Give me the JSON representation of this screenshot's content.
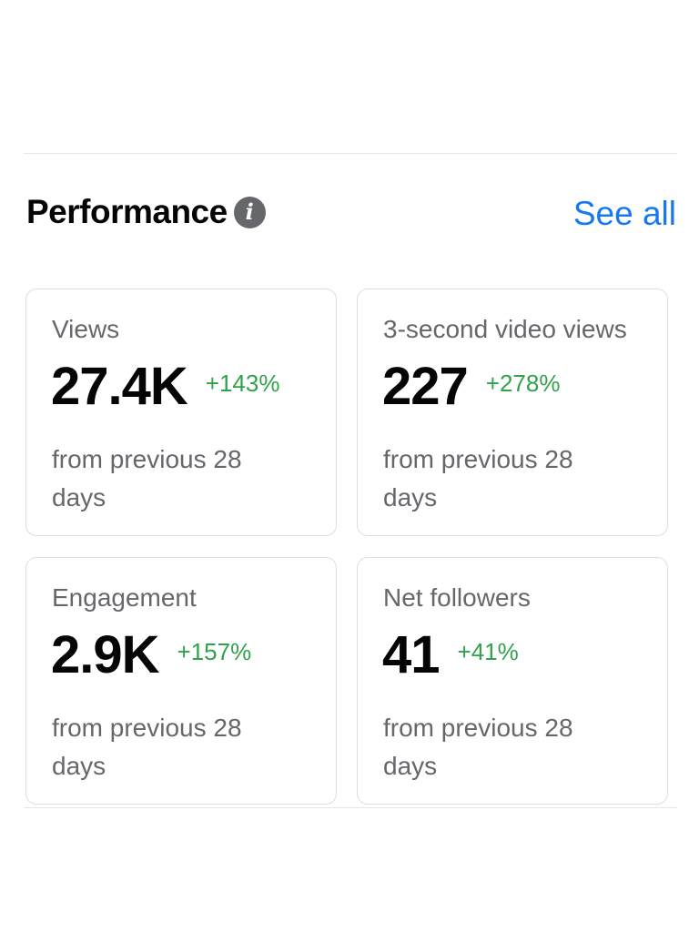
{
  "performance": {
    "title": "Performance",
    "info_icon": "info-icon",
    "see_all_label": "See all",
    "colors": {
      "positive_change": "#31a24c",
      "link": "#1877f2",
      "muted_text": "#65676b"
    },
    "cards": [
      {
        "label": "Views",
        "value": "27.4K",
        "change": "+143%",
        "note": "from previous 28 days"
      },
      {
        "label": "3-second video views",
        "value": "227",
        "change": "+278%",
        "note": "from previous 28 days"
      },
      {
        "label": "Engagement",
        "value": "2.9K",
        "change": "+157%",
        "note": "from previous 28 days"
      },
      {
        "label": "Net followers",
        "value": "41",
        "change": "+41%",
        "note": "from previous 28 days"
      }
    ]
  }
}
